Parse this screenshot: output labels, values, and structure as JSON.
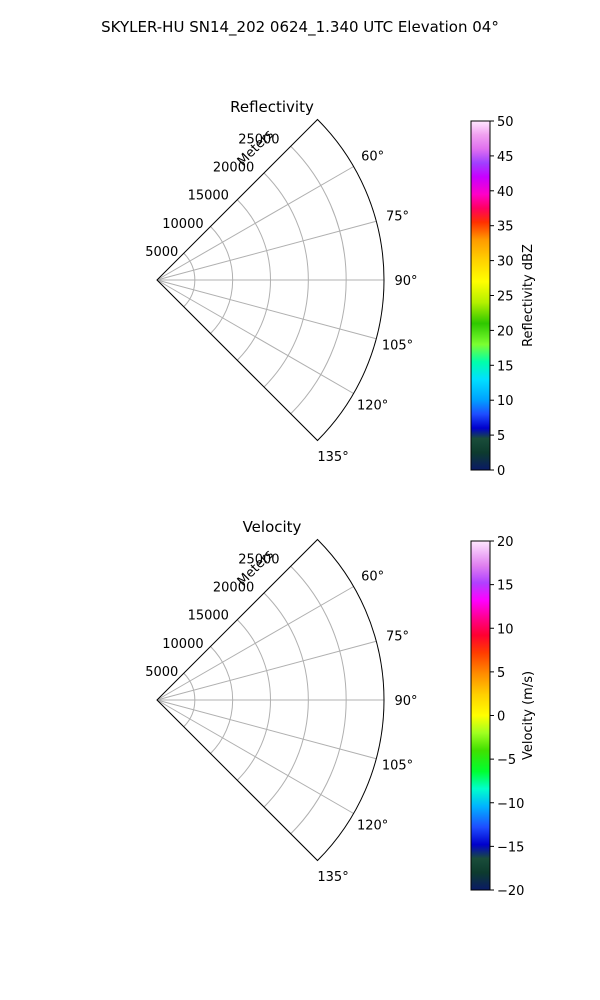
{
  "figure": {
    "suptitle": "SKYLER-HU  SN14_202  0624_1.340 UTC Elevation 04°"
  },
  "chart_data": [
    {
      "type": "polar-sector",
      "title": "Reflectivity",
      "range_label": "Meters",
      "range_ticks": [
        5000,
        10000,
        15000,
        20000,
        25000
      ],
      "range_max": 30000,
      "theta_ticks": [
        "60°",
        "75°",
        "90°",
        "105°",
        "120°",
        "135°"
      ],
      "theta_tick_values": [
        60,
        75,
        90,
        105,
        120,
        135
      ],
      "theta_range": [
        45,
        135
      ],
      "grid": true,
      "colorbar": {
        "label": "Reflectivity dBZ",
        "range": [
          0,
          50
        ],
        "ticks": [
          "0",
          "5",
          "10",
          "15",
          "20",
          "25",
          "30",
          "35",
          "40",
          "45",
          "50"
        ],
        "tick_values": [
          0,
          5,
          10,
          15,
          20,
          25,
          30,
          35,
          40,
          45,
          50
        ]
      }
    },
    {
      "type": "polar-sector",
      "title": "Velocity",
      "range_label": "Meters",
      "range_ticks": [
        5000,
        10000,
        15000,
        20000,
        25000
      ],
      "range_max": 30000,
      "theta_ticks": [
        "60°",
        "75°",
        "90°",
        "105°",
        "120°",
        "135°"
      ],
      "theta_tick_values": [
        60,
        75,
        90,
        105,
        120,
        135
      ],
      "theta_range": [
        45,
        135
      ],
      "grid": true,
      "colorbar": {
        "label": "Velocity (m/s)",
        "range": [
          -20,
          20
        ],
        "ticks": [
          "−20",
          "−15",
          "−10",
          "−5",
          "0",
          "5",
          "10",
          "15",
          "20"
        ],
        "tick_values": [
          -20,
          -15,
          -10,
          -5,
          0,
          5,
          10,
          15,
          20
        ]
      }
    }
  ]
}
